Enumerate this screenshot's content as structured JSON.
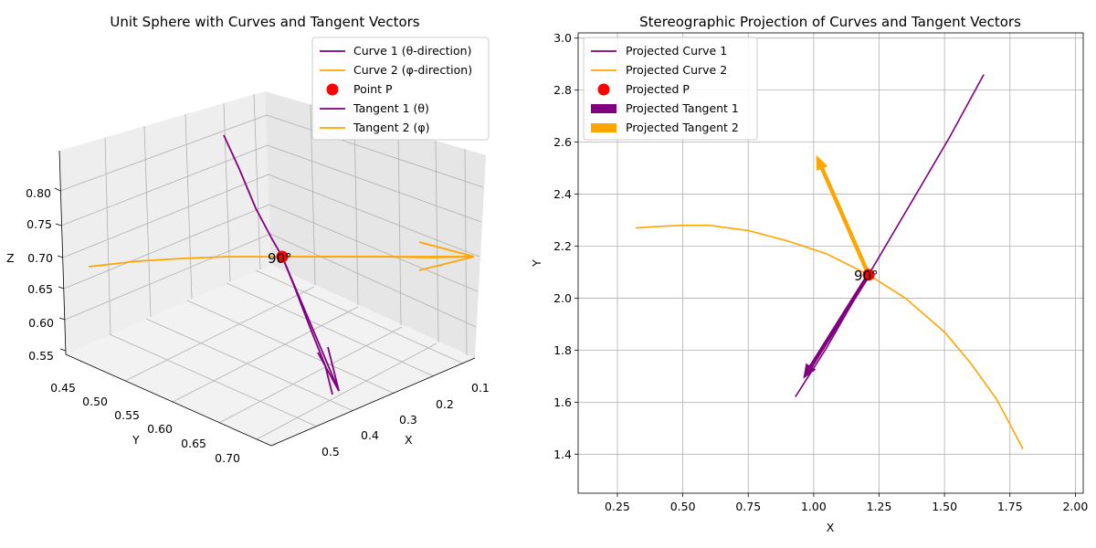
{
  "chart_data": [
    {
      "type": "line",
      "projection": "3d",
      "title": "Unit Sphere with Curves and Tangent Vectors",
      "xlabel": "X",
      "ylabel": "Y",
      "zlabel": "Z",
      "x_ticks": [
        "0.1",
        "0.2",
        "0.3",
        "0.4",
        "0.5"
      ],
      "y_ticks": [
        "0.45",
        "0.50",
        "0.55",
        "0.60",
        "0.65",
        "0.70"
      ],
      "z_ticks": [
        "0.55",
        "0.60",
        "0.65",
        "0.70",
        "0.75",
        "0.80"
      ],
      "xlim": [
        0.05,
        0.57
      ],
      "ylim": [
        0.43,
        0.73
      ],
      "zlim": [
        0.545,
        0.835
      ],
      "grid": true,
      "legend_position": "top-right",
      "legend": [
        {
          "label": "Curve 1 (θ-direction)",
          "color": "#800080",
          "marker": "line"
        },
        {
          "label": "Curve 2 (φ-direction)",
          "color": "#FFA500",
          "marker": "line"
        },
        {
          "label": "Point P",
          "color": "#FF0000",
          "marker": "dot"
        },
        {
          "label": "Tangent 1 (θ)",
          "color": "#800080",
          "marker": "line"
        },
        {
          "label": "Tangent 2 (φ)",
          "color": "#FFA500",
          "marker": "line"
        }
      ],
      "annotation": "90°",
      "point_p": {
        "x": 0.25,
        "y": 0.57,
        "z": 0.71
      },
      "curve1": {
        "x": [
          0.14,
          0.19,
          0.25,
          0.31,
          0.36
        ],
        "y": [
          0.46,
          0.51,
          0.57,
          0.63,
          0.68
        ],
        "z": [
          0.81,
          0.77,
          0.71,
          0.62,
          0.55
        ]
      },
      "curve2": {
        "x": [
          0.49,
          0.38,
          0.25,
          0.12,
          0.02
        ],
        "y": [
          0.7,
          0.64,
          0.57,
          0.49,
          0.41
        ],
        "z": [
          0.69,
          0.71,
          0.71,
          0.69,
          0.65
        ]
      }
    },
    {
      "type": "line",
      "title": "Stereographic Projection of Curves and Tangent Vectors",
      "xlabel": "X",
      "ylabel": "Y",
      "xlim": [
        0.1,
        2.03
      ],
      "ylim": [
        1.25,
        3.02
      ],
      "x_ticks": [
        0.25,
        0.5,
        0.75,
        1.0,
        1.25,
        1.5,
        1.75,
        2.0
      ],
      "x_tick_labels": [
        "0.25",
        "0.50",
        "0.75",
        "1.00",
        "1.25",
        "1.50",
        "1.75",
        "2.00"
      ],
      "y_ticks": [
        1.4,
        1.6,
        1.8,
        2.0,
        2.2,
        2.4,
        2.6,
        2.8,
        3.0
      ],
      "y_tick_labels": [
        "1.4",
        "1.6",
        "1.8",
        "2.0",
        "2.2",
        "2.4",
        "2.6",
        "2.8",
        "3.0"
      ],
      "grid": true,
      "legend_position": "top-left",
      "legend": [
        {
          "label": "Projected Curve 1",
          "color": "#800080",
          "marker": "line"
        },
        {
          "label": "Projected Curve 2",
          "color": "#FFA500",
          "marker": "line"
        },
        {
          "label": "Projected P",
          "color": "#FF0000",
          "marker": "dot"
        },
        {
          "label": "Projected Tangent 1",
          "color": "#800080",
          "marker": "patch"
        },
        {
          "label": "Projected Tangent 2",
          "color": "#FFA500",
          "marker": "patch"
        }
      ],
      "annotation": "90°",
      "series": [
        {
          "name": "Projected Curve 1",
          "color": "#800080",
          "x": [
            0.93,
            1.05,
            1.21,
            1.38,
            1.52,
            1.65
          ],
          "y": [
            1.62,
            1.81,
            2.09,
            2.38,
            2.62,
            2.86
          ]
        },
        {
          "name": "Projected Curve 2",
          "color": "#FFA500",
          "x": [
            0.32,
            0.4,
            0.5,
            0.6,
            0.75,
            0.9,
            1.05,
            1.21,
            1.35,
            1.5,
            1.6,
            1.7,
            1.8
          ],
          "y": [
            2.27,
            2.275,
            2.28,
            2.28,
            2.26,
            2.22,
            2.17,
            2.09,
            2.0,
            1.87,
            1.75,
            1.61,
            1.42
          ]
        }
      ],
      "point_p": {
        "x": 1.21,
        "y": 2.09
      },
      "tangent1": {
        "x0": 1.21,
        "y0": 2.09,
        "x1": 0.96,
        "y1": 1.69
      },
      "tangent2": {
        "x0": 1.21,
        "y0": 2.09,
        "x1": 1.01,
        "y1": 2.55
      }
    }
  ]
}
